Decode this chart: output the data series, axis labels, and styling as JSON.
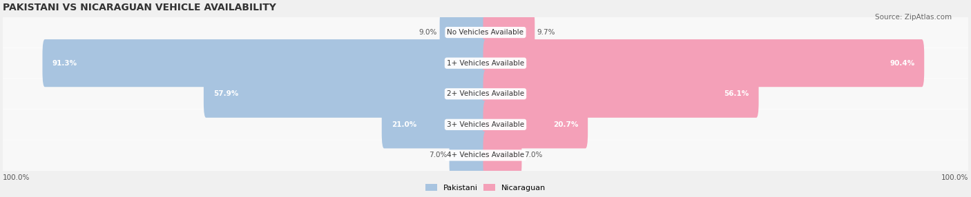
{
  "title": "PAKISTANI VS NICARAGUAN VEHICLE AVAILABILITY",
  "source": "Source: ZipAtlas.com",
  "categories": [
    "No Vehicles Available",
    "1+ Vehicles Available",
    "2+ Vehicles Available",
    "3+ Vehicles Available",
    "4+ Vehicles Available"
  ],
  "pakistani": [
    9.0,
    91.3,
    57.9,
    21.0,
    7.0
  ],
  "nicaraguan": [
    9.7,
    90.4,
    56.1,
    20.7,
    7.0
  ],
  "pakistani_color": "#a8c4e0",
  "nicaraguan_color": "#f4a0b8",
  "pakistani_label": "Pakistani",
  "nicaraguan_label": "Nicaraguan",
  "bg_color": "#f0f0f0",
  "bar_bg_color": "#e8e8e8",
  "max_value": 100.0,
  "figsize": [
    14.06,
    2.86
  ],
  "dpi": 100
}
